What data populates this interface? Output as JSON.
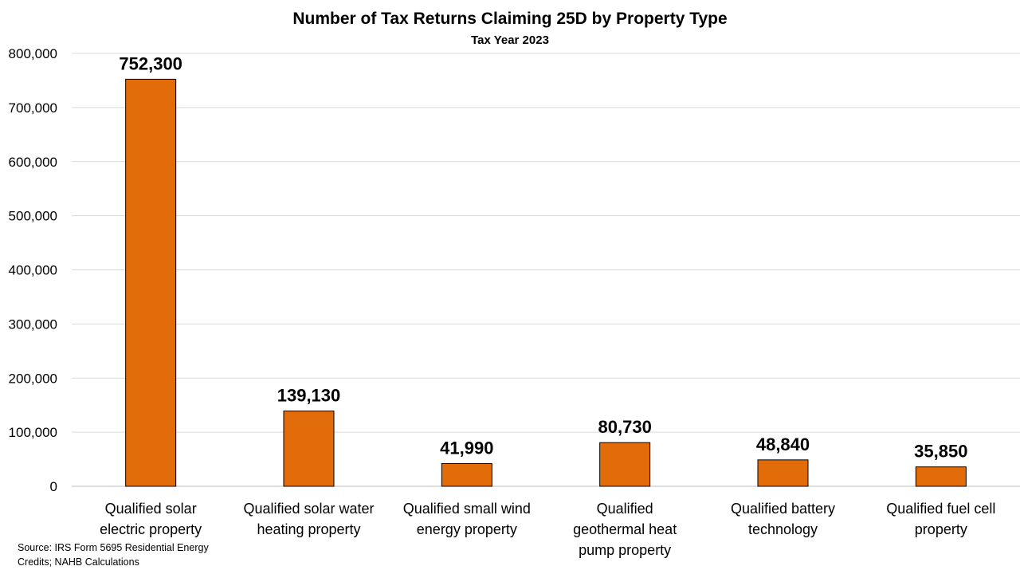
{
  "chart_data": {
    "type": "bar",
    "title": "Number of Tax Returns Claiming 25D by Property Type",
    "subtitle": "Tax Year 2023",
    "categories": [
      "Qualified solar electric property",
      "Qualified solar water heating property",
      "Qualified small wind energy property",
      "Qualified geothermal heat pump property",
      "Qualified battery technology",
      "Qualified fuel cell property"
    ],
    "category_lines": [
      [
        "Qualified solar",
        "electric property"
      ],
      [
        "Qualified solar water",
        "heating property"
      ],
      [
        "Qualified small wind",
        "energy property"
      ],
      [
        "Qualified",
        "geothermal heat",
        "pump property"
      ],
      [
        "Qualified battery",
        "technology"
      ],
      [
        "Qualified fuel cell",
        "property"
      ]
    ],
    "values": [
      752300,
      139130,
      41990,
      80730,
      48840,
      35850
    ],
    "data_labels": [
      "752,300",
      "139,130",
      "41,990",
      "80,730",
      "48,840",
      "35,850"
    ],
    "ylim": [
      0,
      800000
    ],
    "yticks": [
      0,
      100000,
      200000,
      300000,
      400000,
      500000,
      600000,
      700000,
      800000
    ],
    "ytick_labels": [
      "0",
      "100,000",
      "200,000",
      "300,000",
      "400,000",
      "500,000",
      "600,000",
      "700,000",
      "800,000"
    ],
    "xlabel": "",
    "ylabel": "",
    "grid": true,
    "legend": false,
    "colors": {
      "bar": "#E36C0A",
      "bar_edge": "#000000",
      "grid": "#D9D9D9"
    }
  },
  "source": "Source: IRS Form 5695  Residential Energy Credits; NAHB Calculations"
}
